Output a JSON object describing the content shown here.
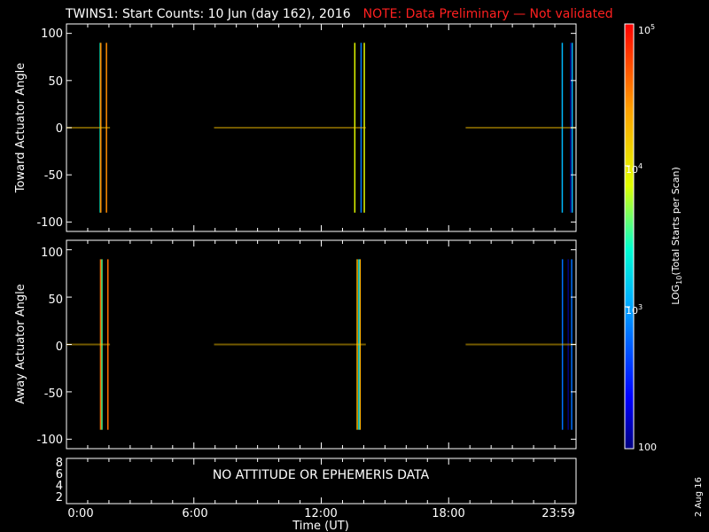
{
  "title": {
    "main": "TWINS1: Start Counts: 10 Jun (day 162), 2016",
    "note": "NOTE: Data Preliminary — Not validated",
    "note_color": "#ff2020"
  },
  "stamp": "2 Aug 16",
  "xaxis": {
    "label": "Time (UT)",
    "ticks": [
      "0:00",
      "6:00",
      "12:00",
      "18:00",
      "23:59"
    ]
  },
  "colorbar": {
    "label": "LOG10(Total Starts per Scan)",
    "ticks": [
      "10^5",
      "10^4",
      "10^3",
      "100"
    ],
    "range": [
      100,
      100000
    ],
    "scale": "log"
  },
  "panels": {
    "toward": {
      "ylabel": "Toward Actuator Angle",
      "yticks": [
        "100",
        "50",
        "0",
        "-50",
        "-100"
      ]
    },
    "away": {
      "ylabel": "Away Actuator Angle",
      "yticks": [
        "100",
        "50",
        "0",
        "-50",
        "-100"
      ]
    },
    "bottom": {
      "yticks": [
        "8",
        "6",
        "4",
        "2"
      ],
      "message": "NO ATTITUDE OR EPHEMERIS DATA"
    }
  },
  "chart_data": [
    {
      "type": "heatmap",
      "ylabel": "Toward Actuator Angle",
      "xlabel": "",
      "xlim_hours": [
        0,
        24
      ],
      "ylim": [
        -110,
        110
      ],
      "data_yrange": [
        -90,
        90
      ],
      "zlim": [
        100,
        100000
      ],
      "zscale": "log",
      "segments": [
        {
          "start_hour": 0.0,
          "end_hour": 2.05,
          "approx_counts": [
            15000,
            60000
          ],
          "dominant": "orange/yellow"
        },
        {
          "start_hour": 6.95,
          "end_hour": 14.1,
          "approx_counts": [
            4000,
            15000
          ],
          "dominant": "yellow/green"
        },
        {
          "start_hour": 18.8,
          "end_hour": 23.98,
          "approx_counts": [
            500,
            3000
          ],
          "dominant": "blue/cyan"
        }
      ]
    },
    {
      "type": "heatmap",
      "ylabel": "Away Actuator Angle",
      "xlabel": "Time (UT)",
      "xlim_hours": [
        0,
        24
      ],
      "ylim": [
        -110,
        110
      ],
      "data_yrange": [
        -90,
        90
      ],
      "zlim": [
        100,
        100000
      ],
      "zscale": "log",
      "segments": [
        {
          "start_hour": 0.0,
          "end_hour": 2.05,
          "approx_counts": [
            20000,
            80000
          ],
          "dominant": "red/orange"
        },
        {
          "start_hour": 6.95,
          "end_hour": 14.1,
          "approx_counts": [
            10000,
            40000
          ],
          "dominant": "orange/yellow"
        },
        {
          "start_hour": 18.8,
          "end_hour": 23.98,
          "approx_counts": [
            200,
            2000
          ],
          "dominant": "blue"
        }
      ]
    }
  ]
}
